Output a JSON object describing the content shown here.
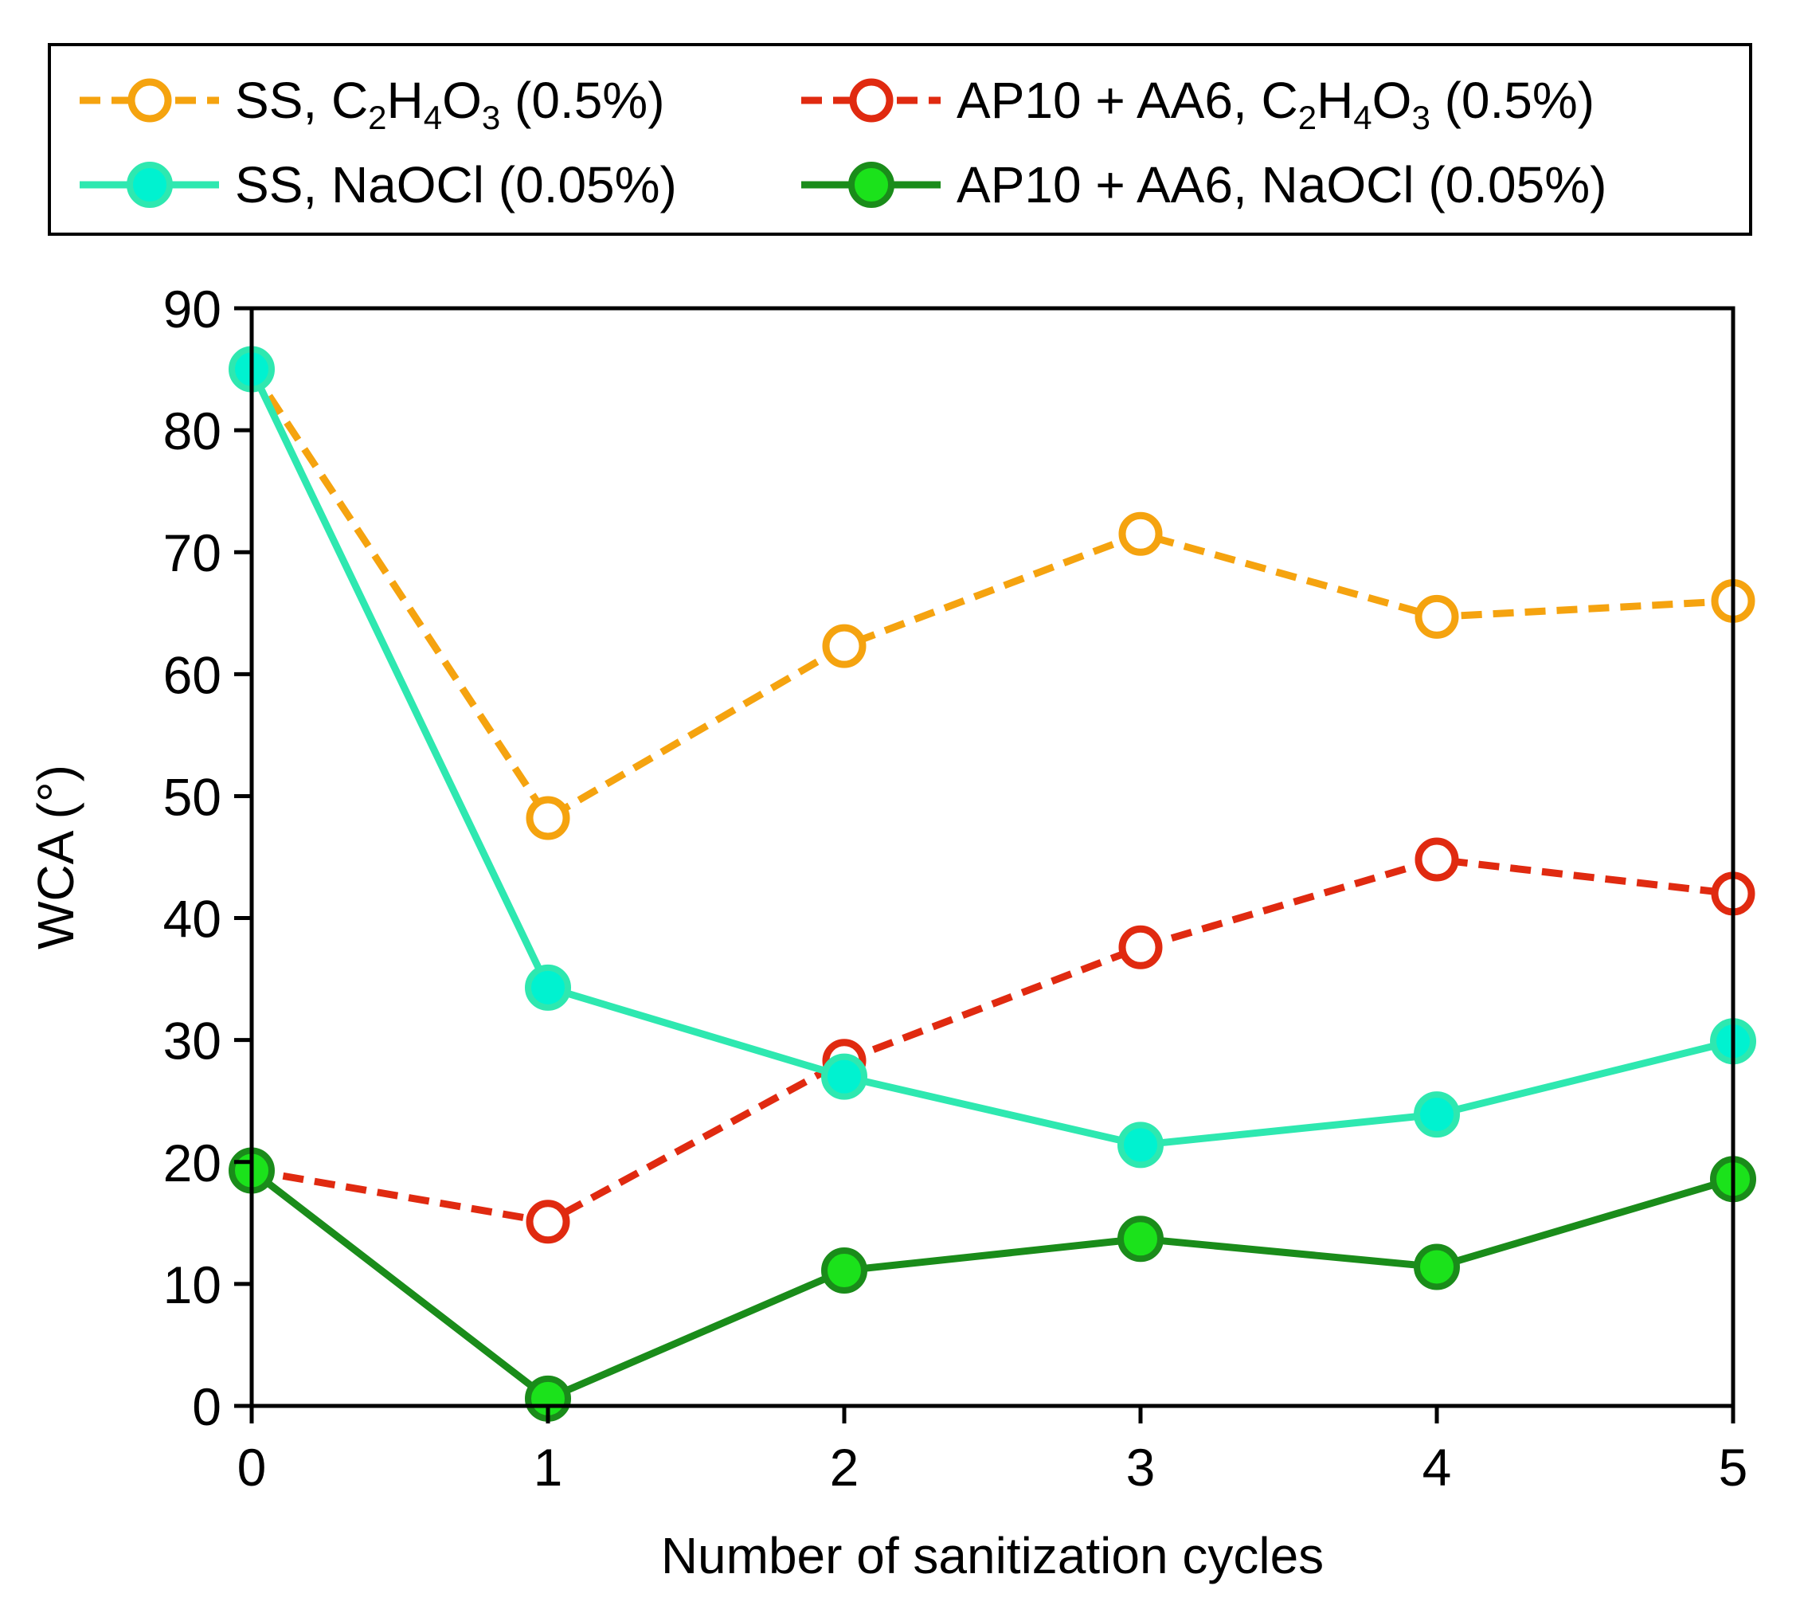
{
  "chart_data": {
    "type": "line",
    "x": [
      0,
      1,
      2,
      3,
      4,
      5
    ],
    "xlabel": "Number of sanitization cycles",
    "ylabel": "WCA (°)",
    "xlim": [
      0,
      5
    ],
    "ylim": [
      0,
      90
    ],
    "x_ticks": [
      "0",
      "1",
      "2",
      "3",
      "4",
      "5"
    ],
    "y_ticks": [
      "0",
      "10",
      "20",
      "30",
      "40",
      "50",
      "60",
      "70",
      "80",
      "90"
    ],
    "grid": false,
    "legend_position": "top, outside plot, boxed, two columns",
    "series": [
      {
        "name": "SS, C2H4O3 (0.5%)",
        "legend_parts": [
          [
            "SS, C",
            ""
          ],
          [
            "2",
            "sub"
          ],
          [
            "H",
            ""
          ],
          [
            "4",
            "sub"
          ],
          [
            "O",
            ""
          ],
          [
            "3",
            "sub"
          ],
          [
            " (0.5%)",
            ""
          ]
        ],
        "values": [
          85,
          48.2,
          62.3,
          71.5,
          64.7,
          66
        ],
        "color": "#f5a30f",
        "line_style": "dashed",
        "marker": "open-circle"
      },
      {
        "name": "AP10 + AA6, C2H4O3 (0.5%)",
        "legend_parts": [
          [
            "AP10 + AA6, C",
            ""
          ],
          [
            "2",
            "sub"
          ],
          [
            "H",
            ""
          ],
          [
            "4",
            "sub"
          ],
          [
            "O",
            ""
          ],
          [
            "3",
            "sub"
          ],
          [
            " (0.5%)",
            ""
          ]
        ],
        "values": [
          19.3,
          15.1,
          28.3,
          37.6,
          44.8,
          42
        ],
        "color": "#e02a10",
        "line_style": "dashed",
        "marker": "open-circle"
      },
      {
        "name": "SS, NaOCl (0.05%)",
        "legend_parts": [
          [
            "SS, NaOCl (0.05%)",
            ""
          ]
        ],
        "values": [
          85,
          34.3,
          27,
          21.4,
          23.9,
          29.9
        ],
        "color": "#2ee8b0",
        "marker_fill": "#00f2d0",
        "line_style": "solid",
        "marker": "filled-circle"
      },
      {
        "name": "AP10 + AA6, NaOCl (0.05%)",
        "legend_parts": [
          [
            "AP10 + AA6, NaOCl (0.05%)",
            ""
          ]
        ],
        "values": [
          19.3,
          0.6,
          11.1,
          13.7,
          11.4,
          18.6
        ],
        "color": "#1a8c1a",
        "marker_fill": "#1be21b",
        "line_style": "solid",
        "marker": "filled-circle"
      }
    ]
  }
}
